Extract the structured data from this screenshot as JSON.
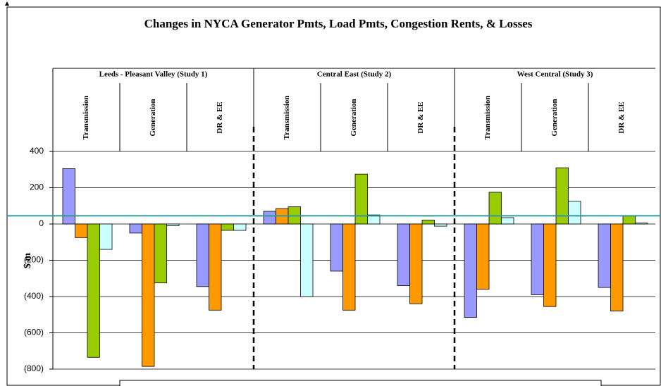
{
  "chart_data": {
    "type": "bar",
    "title": "Changes in NYCA Generator Pmts, Load Pmts, Congestion Rents, & Losses",
    "y_label": "$ m",
    "groups": [
      "Leeds - Pleasant Valley (Study 1)",
      "Central East (Study 2)",
      "West Central (Study 3)"
    ],
    "categories": [
      "Transmission",
      "Generation",
      "DR & EE",
      "Transmission",
      "Generation",
      "DR & EE",
      "Transmission",
      "Generation",
      "DR & EE"
    ],
    "series": [
      {
        "color": "#9999ff",
        "values": [
          305,
          -50,
          -345,
          70,
          -260,
          -340,
          -515,
          -390,
          -350
        ]
      },
      {
        "color": "#ff9900",
        "values": [
          -75,
          -785,
          -475,
          85,
          -475,
          -440,
          -360,
          -455,
          -480
        ]
      },
      {
        "color": "#99cc00",
        "values": [
          -735,
          -325,
          -35,
          95,
          275,
          22,
          175,
          310,
          45
        ]
      },
      {
        "color": "#ccffff",
        "values": [
          -140,
          -10,
          -35,
          -400,
          50,
          -12,
          35,
          125,
          5
        ]
      }
    ],
    "reference_line": {
      "value": 45,
      "color": "#339999"
    },
    "ylim": [
      -800,
      400
    ],
    "yticks": [
      {
        "value": -800,
        "label": "(800)"
      },
      {
        "value": -600,
        "label": "(600)"
      },
      {
        "value": -400,
        "label": "(400)"
      },
      {
        "value": -200,
        "label": "(200)"
      },
      0,
      200,
      400
    ],
    "negative_tick_color": "#ff0000",
    "grid": true
  }
}
